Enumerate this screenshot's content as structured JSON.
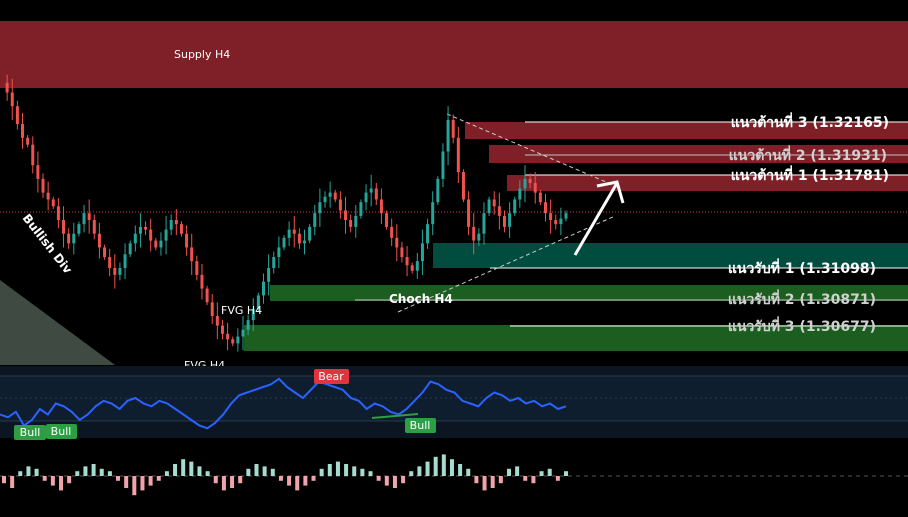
{
  "chart_data": {
    "type": "candlestick",
    "timeframe_note": "H4",
    "zones": [
      {
        "name": "supply",
        "label": "Supply H4",
        "color": "#7f1f27"
      },
      {
        "name": "resistance-zone",
        "color": "#7f1f27"
      },
      {
        "name": "support-zone-1",
        "color": "#004d40"
      },
      {
        "name": "support-zone-2",
        "color": "#1b5e20"
      },
      {
        "name": "support-zone-3",
        "color": "#1b5e20"
      }
    ],
    "levels": [
      {
        "label": "แนวต้านที่ 3 (1.32165)",
        "price": 1.32165,
        "kind": "resistance"
      },
      {
        "label": "แนวต้านที่ 2 (1.31931)",
        "price": 1.31931,
        "kind": "resistance"
      },
      {
        "label": "แนวต้านที่ 1 (1.31781)",
        "price": 1.31781,
        "kind": "resistance"
      },
      {
        "label": "แนวรับที่ 1 (1.31098)",
        "price": 1.31098,
        "kind": "support"
      },
      {
        "label": "แนวรับที่ 2 (1.30871)",
        "price": 1.30871,
        "kind": "support"
      },
      {
        "label": "แนวรับที่ 3 (1.30677)",
        "price": 1.30677,
        "kind": "support"
      }
    ],
    "annotations": {
      "bullish_div": "Bullish Div",
      "fvg1": "FVG H4",
      "fvg2": "FVG H4",
      "choch": "Choch H4"
    },
    "oscillator": {
      "badges": [
        {
          "text": "Bull",
          "color": "#2e9e44"
        },
        {
          "text": "Bull",
          "color": "#2e9e44"
        },
        {
          "text": "Bear",
          "color": "#e0343f"
        },
        {
          "text": "Bull",
          "color": "#2e9e44"
        }
      ],
      "line_color": "#2962ff"
    },
    "histogram_colors": {
      "up": "#a6dccf",
      "down": "#f0a3a9"
    },
    "price_path": [
      1.3245,
      1.3238,
      1.3228,
      1.3215,
      1.3205,
      1.32,
      1.3185,
      1.3175,
      1.3165,
      1.316,
      1.3155,
      1.3145,
      1.3135,
      1.3128,
      1.3135,
      1.3142,
      1.315,
      1.3145,
      1.3135,
      1.3125,
      1.3118,
      1.311,
      1.3105,
      1.311,
      1.312,
      1.3128,
      1.3135,
      1.314,
      1.3138,
      1.313,
      1.3125,
      1.313,
      1.3138,
      1.3145,
      1.3142,
      1.3135,
      1.3125,
      1.3115,
      1.3105,
      1.3095,
      1.3085,
      1.3075,
      1.3068,
      1.3062,
      1.3058,
      1.3055,
      1.306,
      1.3065,
      1.3072,
      1.308,
      1.309,
      1.31,
      1.311,
      1.3118,
      1.3125,
      1.3132,
      1.3138,
      1.3135,
      1.3128,
      1.313,
      1.314,
      1.315,
      1.3158,
      1.3162,
      1.3165,
      1.316,
      1.3152,
      1.3145,
      1.314,
      1.3148,
      1.3158,
      1.3165,
      1.3168,
      1.316,
      1.315,
      1.314,
      1.3132,
      1.3125,
      1.3118,
      1.3112,
      1.3108,
      1.3115,
      1.3128,
      1.3142,
      1.3158,
      1.3175,
      1.3195,
      1.3218,
      1.3205,
      1.318,
      1.316,
      1.314,
      1.313,
      1.3135,
      1.315,
      1.316,
      1.3155,
      1.3148,
      1.314,
      1.315,
      1.316,
      1.3168,
      1.3175,
      1.3172,
      1.3165,
      1.3158,
      1.315,
      1.3145,
      1.3142,
      1.3146,
      1.315
    ],
    "oscillator_values": [
      0.3,
      0.25,
      0.35,
      0.1,
      0.2,
      0.4,
      0.3,
      0.5,
      0.45,
      0.35,
      0.2,
      0.3,
      0.45,
      0.55,
      0.5,
      0.4,
      0.55,
      0.6,
      0.5,
      0.45,
      0.55,
      0.5,
      0.4,
      0.3,
      0.2,
      0.1,
      0.05,
      0.15,
      0.3,
      0.5,
      0.65,
      0.7,
      0.75,
      0.8,
      0.85,
      0.95,
      0.8,
      0.7,
      0.6,
      0.75,
      0.9,
      0.85,
      0.8,
      0.75,
      0.6,
      0.55,
      0.4,
      0.5,
      0.45,
      0.35,
      0.3,
      0.4,
      0.55,
      0.7,
      0.9,
      0.85,
      0.75,
      0.7,
      0.55,
      0.5,
      0.45,
      0.6,
      0.7,
      0.65,
      0.55,
      0.6,
      0.5,
      0.55,
      0.45,
      0.5,
      0.4,
      0.45
    ],
    "histogram_values": [
      -0.3,
      -0.5,
      0.2,
      0.4,
      0.3,
      -0.2,
      -0.4,
      -0.6,
      -0.3,
      0.2,
      0.4,
      0.5,
      0.3,
      0.2,
      -0.2,
      -0.5,
      -0.8,
      -0.6,
      -0.4,
      -0.2,
      0.2,
      0.5,
      0.7,
      0.6,
      0.4,
      0.2,
      -0.3,
      -0.6,
      -0.5,
      -0.3,
      0.3,
      0.5,
      0.4,
      0.3,
      -0.2,
      -0.4,
      -0.6,
      -0.4,
      -0.2,
      0.3,
      0.5,
      0.6,
      0.5,
      0.4,
      0.3,
      0.2,
      -0.2,
      -0.4,
      -0.5,
      -0.3,
      0.2,
      0.4,
      0.6,
      0.8,
      0.9,
      0.7,
      0.5,
      0.3,
      -0.3,
      -0.6,
      -0.5,
      -0.3,
      0.3,
      0.4,
      -0.2,
      -0.3,
      0.2,
      0.3,
      -0.2,
      0.2
    ]
  }
}
